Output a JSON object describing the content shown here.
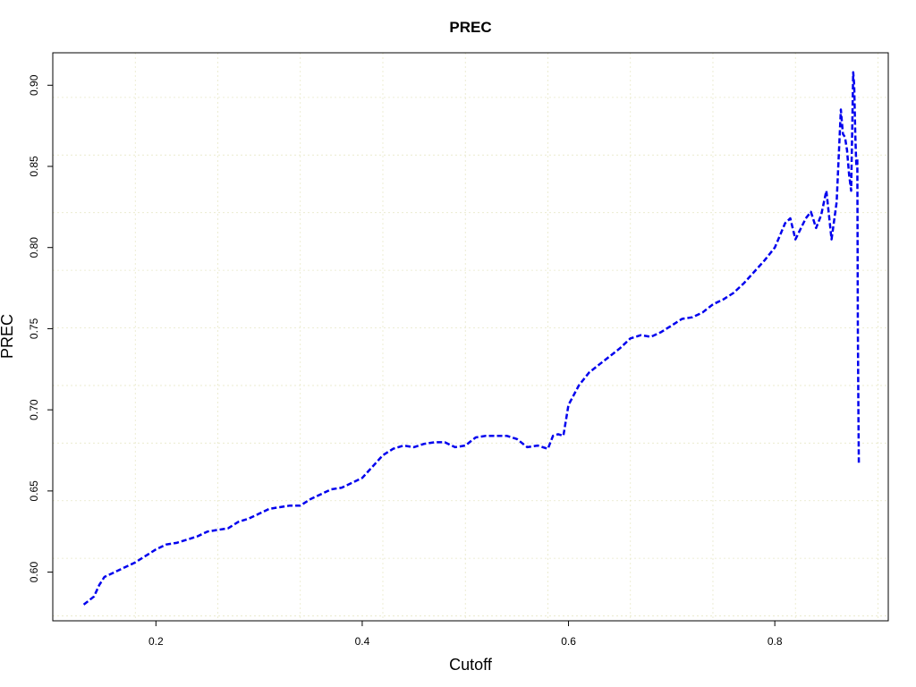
{
  "chart_data": {
    "type": "line",
    "title": "PREC",
    "xlabel": "Cutoff",
    "ylabel": "PREC",
    "xlim": [
      0.1,
      0.91
    ],
    "ylim": [
      0.57,
      0.92
    ],
    "x_ticks": [
      0.2,
      0.4,
      0.6,
      0.8
    ],
    "x_tick_labels": [
      "0.2",
      "0.4",
      "0.6",
      "0.8"
    ],
    "y_ticks": [
      0.6,
      0.65,
      0.7,
      0.75,
      0.8,
      0.85,
      0.9
    ],
    "y_tick_labels": [
      "0.60",
      "0.65",
      "0.70",
      "0.75",
      "0.80",
      "0.85",
      "0.90"
    ],
    "grid": true,
    "grid_color": "#e8e8c8",
    "line_color": "#0000ee",
    "line_style": "dashed",
    "series": [
      {
        "x": [
          0.13,
          0.14,
          0.145,
          0.15,
          0.16,
          0.17,
          0.18,
          0.19,
          0.2,
          0.21,
          0.22,
          0.23,
          0.24,
          0.25,
          0.26,
          0.27,
          0.28,
          0.29,
          0.3,
          0.31,
          0.32,
          0.33,
          0.34,
          0.35,
          0.36,
          0.37,
          0.38,
          0.39,
          0.4,
          0.41,
          0.42,
          0.43,
          0.44,
          0.45,
          0.46,
          0.47,
          0.48,
          0.49,
          0.5,
          0.51,
          0.52,
          0.53,
          0.54,
          0.55,
          0.56,
          0.57,
          0.58,
          0.585,
          0.59,
          0.595,
          0.6,
          0.61,
          0.62,
          0.63,
          0.64,
          0.65,
          0.66,
          0.67,
          0.68,
          0.69,
          0.7,
          0.71,
          0.72,
          0.73,
          0.74,
          0.75,
          0.76,
          0.77,
          0.78,
          0.79,
          0.8,
          0.81,
          0.815,
          0.82,
          0.83,
          0.835,
          0.84,
          0.845,
          0.85,
          0.855,
          0.86,
          0.864,
          0.866,
          0.868,
          0.87,
          0.872,
          0.874,
          0.876,
          0.877,
          0.878,
          0.879,
          0.88,
          0.8805,
          0.881,
          0.8815
        ],
        "y": [
          0.58,
          0.585,
          0.592,
          0.597,
          0.6,
          0.603,
          0.606,
          0.61,
          0.614,
          0.617,
          0.618,
          0.62,
          0.622,
          0.625,
          0.626,
          0.627,
          0.631,
          0.633,
          0.636,
          0.639,
          0.64,
          0.641,
          0.641,
          0.645,
          0.648,
          0.651,
          0.652,
          0.655,
          0.658,
          0.665,
          0.672,
          0.676,
          0.678,
          0.677,
          0.679,
          0.68,
          0.68,
          0.677,
          0.678,
          0.683,
          0.684,
          0.684,
          0.684,
          0.682,
          0.677,
          0.678,
          0.676,
          0.684,
          0.685,
          0.684,
          0.703,
          0.715,
          0.723,
          0.728,
          0.733,
          0.738,
          0.744,
          0.746,
          0.745,
          0.748,
          0.752,
          0.756,
          0.757,
          0.76,
          0.765,
          0.768,
          0.772,
          0.778,
          0.785,
          0.792,
          0.8,
          0.815,
          0.818,
          0.805,
          0.818,
          0.822,
          0.812,
          0.82,
          0.835,
          0.805,
          0.828,
          0.885,
          0.87,
          0.868,
          0.86,
          0.845,
          0.835,
          0.908,
          0.9,
          0.87,
          0.85,
          0.855,
          0.75,
          0.7,
          0.667
        ]
      }
    ]
  }
}
